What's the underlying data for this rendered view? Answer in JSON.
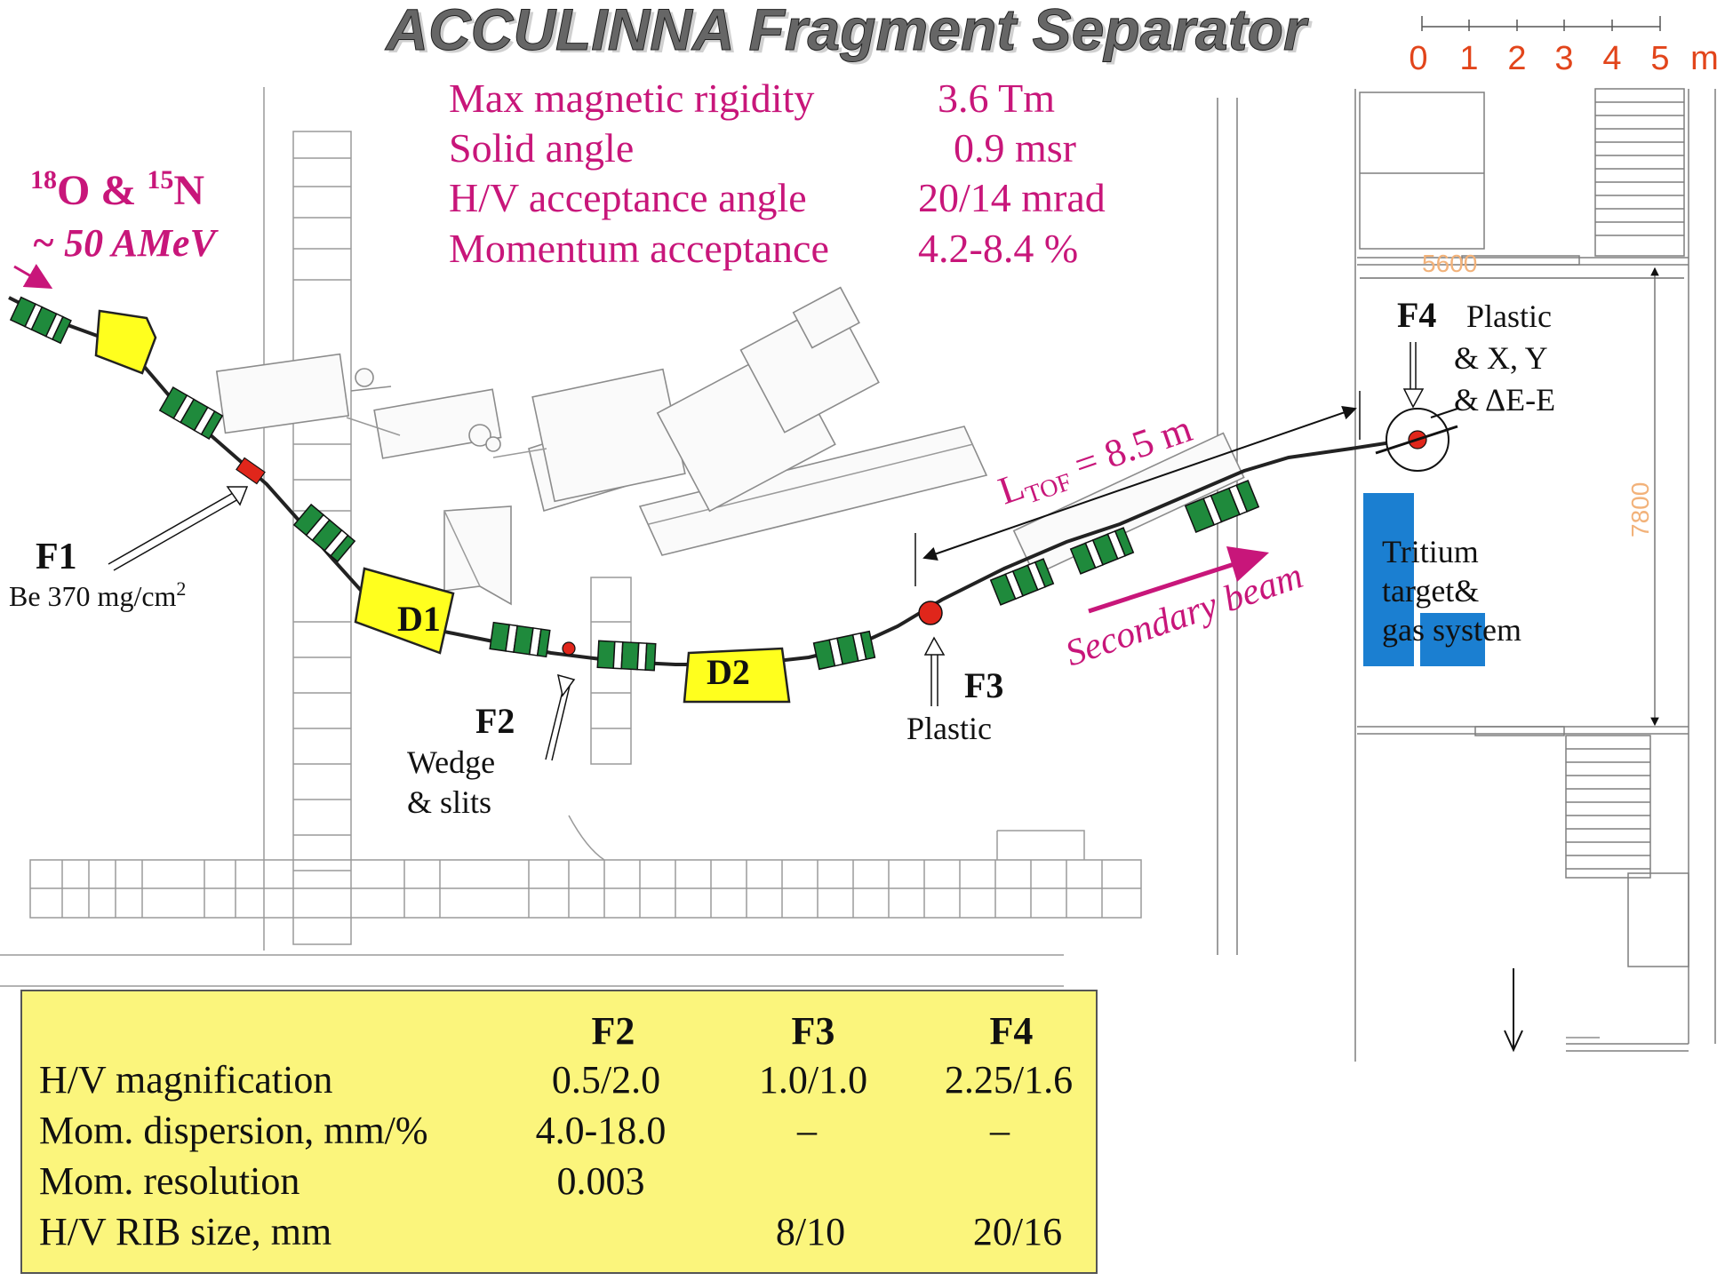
{
  "title": "ACCULINNA Fragment Separator",
  "scale_bar": {
    "ticks": [
      "0",
      "1",
      "2",
      "3",
      "4",
      "5"
    ],
    "unit": "m"
  },
  "beam_label": {
    "line1_sup1": "18",
    "line1_el1": "O & ",
    "line1_sup2": "15",
    "line1_el2": "N",
    "line2": "~ 50 AMeV"
  },
  "specs": [
    {
      "label": "Max magnetic rigidity",
      "value": "3.6 Tm"
    },
    {
      "label": "Solid angle",
      "value": "0.9 msr"
    },
    {
      "label": "H/V acceptance angle",
      "value": "20/14 mrad"
    },
    {
      "label": "Momentum acceptance",
      "value": "4.2-8.4 %"
    }
  ],
  "dipoles": [
    "D1",
    "D2"
  ],
  "foci": {
    "f1": {
      "name": "F1",
      "detail_main": "Be 370 mg/cm",
      "detail_sup": "2"
    },
    "f2": {
      "name": "F2",
      "detail_line1": "Wedge",
      "detail_line2": "& slits"
    },
    "f3": {
      "name": "F3",
      "detail": "Plastic"
    },
    "f4": {
      "name": "F4",
      "detail_line1": "Plastic",
      "detail_line2": "& X, Y",
      "detail_line3": "& ΔE-E"
    }
  },
  "tof": {
    "main": "L",
    "sub": "TOF",
    "rest": " = 8.5 m"
  },
  "secondary_beam": "Secondary beam",
  "tritium": {
    "line1": "Tritium",
    "line2": "target&",
    "line3": "gas system"
  },
  "dimensions": {
    "width_label": "5600",
    "height_label": "7800"
  },
  "colors": {
    "magenta": "#c8167a",
    "dipole_yellow": "#ffff1e",
    "quad_green": "#1f8a3c",
    "focus_red": "#e0261b",
    "tritium_blue": "#1b7fd1",
    "table_bg": "#fbf57c",
    "scale_orange": "#e2451b"
  },
  "table": {
    "headers": [
      "",
      "F2",
      "F3",
      "F4"
    ],
    "rows": [
      [
        "H/V magnification",
        "0.5/2.0",
        "1.0/1.0",
        "2.25/1.6"
      ],
      [
        "Mom. dispersion, mm/%",
        "4.0-18.0",
        "–",
        "–"
      ],
      [
        "Mom. resolution",
        "0.003",
        "",
        ""
      ],
      [
        "H/V RIB size, mm",
        "",
        "8/10",
        "20/16"
      ]
    ]
  }
}
